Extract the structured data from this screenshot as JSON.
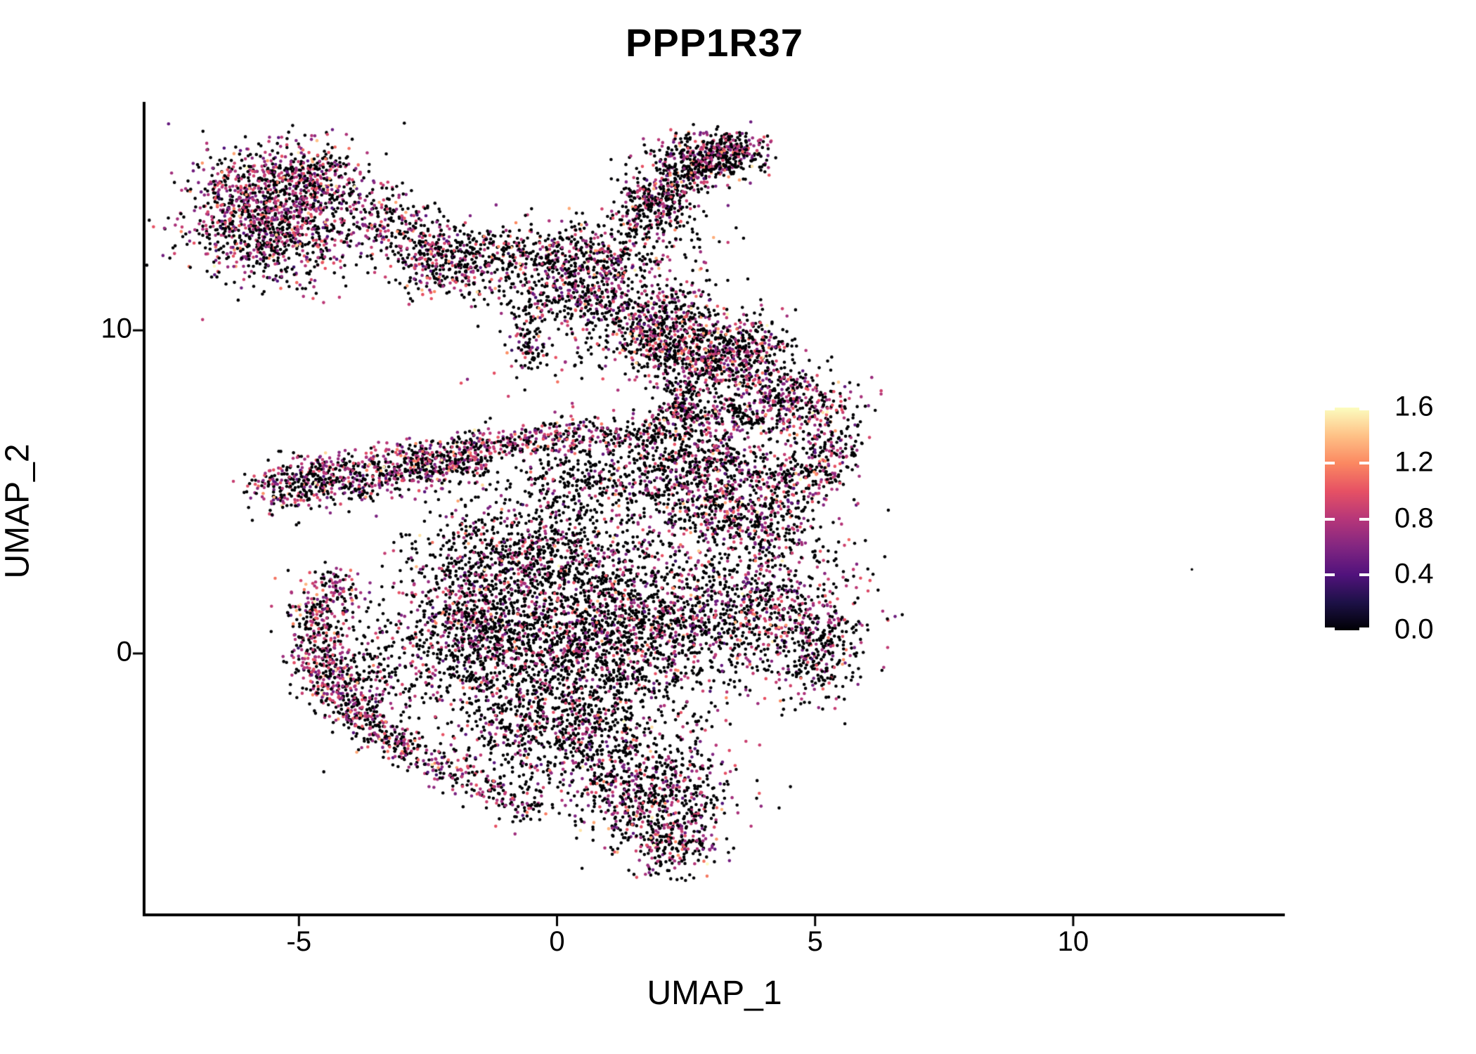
{
  "title": "PPP1R37",
  "axes": {
    "x": {
      "label": "UMAP_1",
      "ticks": [
        {
          "label": "-5",
          "value": -5
        },
        {
          "label": "0",
          "value": 0
        },
        {
          "label": "5",
          "value": 5
        },
        {
          "label": "10",
          "value": 10
        }
      ]
    },
    "y": {
      "label": "UMAP_2",
      "ticks": [
        {
          "label": "0",
          "value": 0
        },
        {
          "label": "10",
          "value": 10
        }
      ]
    }
  },
  "legend": {
    "labels": [
      {
        "text": "1.6",
        "value": 1.6
      },
      {
        "text": "1.2",
        "value": 1.2
      },
      {
        "text": "0.8",
        "value": 0.8
      },
      {
        "text": "0.4",
        "value": 0.4
      },
      {
        "text": "0.0",
        "value": 0.0
      }
    ],
    "min": 0.0,
    "max": 1.6
  },
  "colors": {
    "axis": "#000000",
    "text": "#000000",
    "background": "#ffffff",
    "magma_stops": [
      "#000004",
      "#1d1147",
      "#51127c",
      "#822681",
      "#b63679",
      "#e65164",
      "#fb8861",
      "#fec287",
      "#fcfdbf"
    ]
  },
  "chart_data": {
    "type": "scatter",
    "title": "PPP1R37",
    "xlabel": "UMAP_1",
    "ylabel": "UMAP_2",
    "xlim": [
      -8.0,
      14.1
    ],
    "ylim": [
      -8.09,
      17.07
    ],
    "x_ticks": [
      -5,
      0,
      5,
      10
    ],
    "y_ticks": [
      0,
      10
    ],
    "grid": false,
    "legend_position": "right",
    "colorbar": {
      "colormap": "magma",
      "min": 0.0,
      "max": 1.6,
      "tick_values": [
        0.0,
        0.4,
        0.8,
        1.2,
        1.6
      ]
    },
    "point_radius_px": 2.3,
    "expression_value_model": {
      "zero": {
        "value": 0
      },
      "mid": {
        "mean": 0.75,
        "sd": 0.18,
        "min": 0.25,
        "max": 1.0
      },
      "high": {
        "mean": 1.15,
        "sd": 0.12,
        "min": 1.0,
        "max": 1.35
      },
      "vhigh": {
        "mean": 1.5,
        "sd": 0.1,
        "min": 1.35,
        "max": 1.65
      }
    },
    "mixes": {
      "purpleRich": [
        0.47,
        0.46,
        0.058,
        0.012
      ],
      "standard": [
        0.6,
        0.35,
        0.043,
        0.007
      ],
      "blackDom": [
        0.72,
        0.253,
        0.024,
        0.003
      ],
      "allZero": [
        1,
        0,
        0,
        0
      ]
    },
    "seed": 1337,
    "clusters": [
      {
        "name": "topleft-core",
        "type": "blob",
        "c": [
          -5.9,
          13.9
        ],
        "sd": [
          0.65,
          0.85
        ],
        "n": 700,
        "mix": "purpleRich"
      },
      {
        "name": "topleft-upper",
        "type": "blob",
        "c": [
          -4.7,
          14.6
        ],
        "sd": [
          0.55,
          0.6
        ],
        "n": 420,
        "mix": "purpleRich"
      },
      {
        "name": "topleft-lower",
        "type": "blob",
        "c": [
          -5.2,
          12.9
        ],
        "sd": [
          0.85,
          0.45
        ],
        "n": 320,
        "mix": "purpleRich"
      },
      {
        "name": "topleft-halo",
        "type": "blob",
        "c": [
          -5.3,
          11.9
        ],
        "sd": [
          0.95,
          0.45
        ],
        "n": 130,
        "mix": "standard"
      },
      {
        "name": "bridge-1",
        "type": "blob",
        "c": [
          -3.3,
          13.4
        ],
        "sd": [
          0.5,
          0.5
        ],
        "n": 160,
        "mix": "standard"
      },
      {
        "name": "bridge-2",
        "type": "blob",
        "c": [
          -2.5,
          12.7
        ],
        "sd": [
          0.45,
          0.5
        ],
        "n": 130,
        "mix": "standard"
      },
      {
        "name": "bridge-cluster",
        "type": "blob",
        "c": [
          -2.1,
          11.8
        ],
        "sd": [
          0.5,
          0.55
        ],
        "n": 240,
        "mix": "standard"
      },
      {
        "name": "bridge-sparse",
        "type": "blob",
        "c": [
          -1.3,
          12.4
        ],
        "sd": [
          0.5,
          0.5
        ],
        "n": 150,
        "mix": "blackDom"
      },
      {
        "name": "uppermid-top",
        "type": "blob",
        "c": [
          0.3,
          12.3
        ],
        "sd": [
          0.8,
          0.55
        ],
        "n": 430,
        "mix": "standard"
      },
      {
        "name": "uppermid-bottom",
        "type": "blob",
        "c": [
          0.6,
          11.1
        ],
        "sd": [
          0.65,
          0.6
        ],
        "n": 360,
        "mix": "standard"
      },
      {
        "name": "arm-base",
        "type": "line",
        "from": [
          1.3,
          13.2
        ],
        "to": [
          2.2,
          14.2
        ],
        "sd": 0.35,
        "n": 160,
        "mix": "standard"
      },
      {
        "name": "topright-arm",
        "type": "line",
        "from": [
          1.6,
          13.9
        ],
        "to": [
          3.6,
          15.8
        ],
        "sd": 0.32,
        "n": 420,
        "mix": "standard"
      },
      {
        "name": "arm-head",
        "type": "blob",
        "c": [
          2.7,
          15.3
        ],
        "sd": [
          0.55,
          0.4
        ],
        "n": 260,
        "mix": "standard"
      },
      {
        "name": "arm-tip",
        "type": "blob",
        "c": [
          3.4,
          15.6
        ],
        "sd": [
          0.35,
          0.3
        ],
        "n": 120,
        "mix": "purpleRich"
      },
      {
        "name": "under-arm-sparse",
        "type": "blob",
        "c": [
          2.2,
          13.1
        ],
        "sd": [
          0.5,
          0.6
        ],
        "n": 90,
        "mix": "blackDom"
      },
      {
        "name": "midright-blob",
        "type": "blob",
        "c": [
          2.1,
          9.9
        ],
        "sd": [
          0.6,
          0.75
        ],
        "n": 680,
        "mix": "standard"
      },
      {
        "name": "midright-edge",
        "type": "blob",
        "c": [
          2.9,
          8.9
        ],
        "sd": [
          0.45,
          0.5
        ],
        "n": 200,
        "mix": "standard"
      },
      {
        "name": "hanging-column",
        "type": "line",
        "from": [
          2.3,
          8.4
        ],
        "to": [
          2.5,
          7.2
        ],
        "sd": 0.22,
        "n": 110,
        "mix": "blackDom"
      },
      {
        "name": "vertical-string",
        "type": "line",
        "from": [
          -0.7,
          10.8
        ],
        "to": [
          -0.5,
          8.8
        ],
        "sd": 0.16,
        "n": 90,
        "mix": "blackDom"
      },
      {
        "name": "sparse-field",
        "type": "blob",
        "c": [
          -0.2,
          9.6
        ],
        "sd": [
          0.85,
          0.8
        ],
        "n": 70,
        "mix": "blackDom"
      },
      {
        "name": "black-streak",
        "type": "line",
        "from": [
          3.25,
          7.7
        ],
        "to": [
          3.9,
          7.1
        ],
        "sd": 0.09,
        "n": 55,
        "mix": "allZero"
      },
      {
        "name": "band-top",
        "type": "line",
        "from": [
          -5.0,
          5.55
        ],
        "to": [
          0.9,
          6.95
        ],
        "sd": 0.27,
        "n": 640,
        "mix": "purpleRich"
      },
      {
        "name": "band-bottom",
        "type": "line",
        "from": [
          -5.15,
          4.95
        ],
        "to": [
          -1.4,
          5.95
        ],
        "sd": 0.3,
        "n": 430,
        "mix": "standard"
      },
      {
        "name": "band-tip",
        "type": "blob",
        "c": [
          -5.35,
          5.3
        ],
        "sd": [
          0.3,
          0.45
        ],
        "n": 150,
        "mix": "purpleRich"
      },
      {
        "name": "band-right-sparse",
        "type": "line",
        "from": [
          0.9,
          6.6
        ],
        "to": [
          2.2,
          6.9
        ],
        "sd": 0.25,
        "n": 120,
        "mix": "blackDom"
      },
      {
        "name": "rightblob-top",
        "type": "blob",
        "c": [
          3.6,
          9.3
        ],
        "sd": [
          0.5,
          0.65
        ],
        "n": 380,
        "mix": "standard"
      },
      {
        "name": "rightblob-core",
        "type": "blob",
        "c": [
          4.5,
          7.8
        ],
        "sd": [
          0.65,
          0.6
        ],
        "n": 430,
        "mix": "purpleRich"
      },
      {
        "name": "rightblob-left",
        "type": "blob",
        "c": [
          2.6,
          7.1
        ],
        "sd": [
          0.55,
          0.45
        ],
        "n": 200,
        "mix": "standard"
      },
      {
        "name": "rightblob-tip",
        "type": "blob",
        "c": [
          5.3,
          6.3
        ],
        "sd": [
          0.35,
          0.45
        ],
        "n": 120,
        "mix": "standard"
      },
      {
        "name": "mass-upperleft",
        "type": "blob",
        "c": [
          -0.5,
          3.1
        ],
        "sd": [
          1.1,
          0.95
        ],
        "n": 900,
        "mix": "blackDom"
      },
      {
        "name": "mass-core-left",
        "type": "blob",
        "c": [
          -0.6,
          0.3
        ],
        "sd": [
          1.25,
          1.15
        ],
        "n": 1250,
        "mix": "blackDom"
      },
      {
        "name": "mass-core-right",
        "type": "blob",
        "c": [
          1.6,
          0.8
        ],
        "sd": [
          1.15,
          1.2
        ],
        "n": 1150,
        "mix": "blackDom"
      },
      {
        "name": "mass-right-upper",
        "type": "blob",
        "c": [
          3.5,
          4.5
        ],
        "sd": [
          0.95,
          0.8
        ],
        "n": 680,
        "mix": "standard"
      },
      {
        "name": "mass-right-lower",
        "type": "blob",
        "c": [
          4.0,
          1.6
        ],
        "sd": [
          0.95,
          1.05
        ],
        "n": 680,
        "mix": "standard"
      },
      {
        "name": "mass-right-bump",
        "type": "blob",
        "c": [
          5.0,
          0.1
        ],
        "sd": [
          0.5,
          0.8
        ],
        "n": 280,
        "mix": "blackDom"
      },
      {
        "name": "mass-bottom",
        "type": "blob",
        "c": [
          0.3,
          -2.4
        ],
        "sd": [
          1.05,
          0.9
        ],
        "n": 800,
        "mix": "blackDom"
      },
      {
        "name": "mass-bottom-tip",
        "type": "blob",
        "c": [
          1.8,
          -4.3
        ],
        "sd": [
          0.85,
          0.8
        ],
        "n": 620,
        "mix": "standard"
      },
      {
        "name": "mass-tail",
        "type": "blob",
        "c": [
          2.2,
          -5.9
        ],
        "sd": [
          0.5,
          0.5
        ],
        "n": 230,
        "mix": "standard"
      },
      {
        "name": "mass-top-saddle",
        "type": "blob",
        "c": [
          0.8,
          5.4
        ],
        "sd": [
          0.85,
          0.55
        ],
        "n": 360,
        "mix": "blackDom"
      },
      {
        "name": "mass-top-edge",
        "type": "line",
        "from": [
          2.2,
          6.3
        ],
        "to": [
          5.4,
          5.3
        ],
        "sd": 0.35,
        "n": 300,
        "mix": "standard"
      },
      {
        "name": "mass-top-fill",
        "type": "blob",
        "c": [
          2.5,
          5.5
        ],
        "sd": [
          0.5,
          0.6
        ],
        "n": 160,
        "mix": "blackDom"
      },
      {
        "name": "mass-left-edge",
        "type": "blob",
        "c": [
          -1.8,
          1.2
        ],
        "sd": [
          0.6,
          1.3
        ],
        "n": 300,
        "mix": "standard"
      },
      {
        "name": "crescent-rim",
        "type": "curve",
        "p0": [
          -4.6,
          1.5
        ],
        "p1": [
          -5.1,
          -1.3
        ],
        "p2": [
          -2.7,
          -3.1
        ],
        "sd": 0.28,
        "n": 620,
        "mix": "purpleRich"
      },
      {
        "name": "crescent-fill",
        "type": "blob",
        "c": [
          -3.6,
          -0.5
        ],
        "sd": [
          0.55,
          1.0
        ],
        "n": 240,
        "mix": "blackDom"
      },
      {
        "name": "crescent-trail",
        "type": "line",
        "from": [
          -2.7,
          -3.2
        ],
        "to": [
          -0.2,
          -5.0
        ],
        "sd": 0.28,
        "n": 210,
        "mix": "standard"
      },
      {
        "name": "crescent-top-tip",
        "type": "blob",
        "c": [
          -4.4,
          1.9
        ],
        "sd": [
          0.35,
          0.35
        ],
        "n": 120,
        "mix": "purpleRich"
      }
    ],
    "outlier": {
      "x": 12.3,
      "y": 2.6,
      "value": 0
    }
  }
}
